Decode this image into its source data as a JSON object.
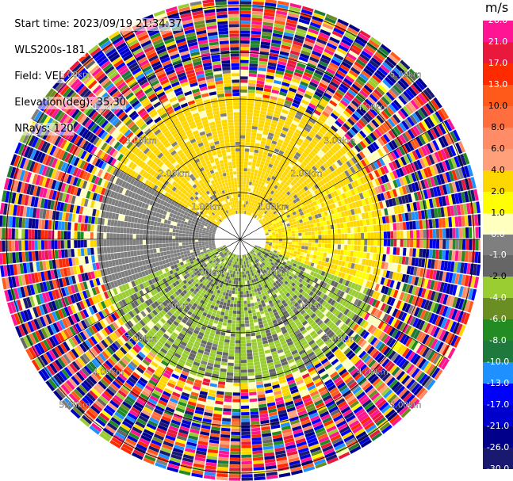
{
  "header": {
    "start_time": "Start time: 2023/09/19 21:34:37",
    "instrument": "WLS200s-181",
    "field": "Field: VEL",
    "elevation": "Elevation(deg): 35.30",
    "nrays": "NRays: 120"
  },
  "colorbar": {
    "unit": "m/s",
    "levels": [
      "26.0",
      "21.0",
      "17.0",
      "13.0",
      "10.0",
      "8.0",
      "6.0",
      "4.0",
      "2.0",
      "1.0",
      "0.0",
      "-1.0",
      "-2.0",
      "-4.0",
      "-6.0",
      "-8.0",
      "-10.0",
      "-13.0",
      "-17.0",
      "-21.0",
      "-26.0",
      "-30.0"
    ],
    "colors": [
      "#ff1493",
      "#e8193c",
      "#ff2a00",
      "#ff5a1a",
      "#ff6e3c",
      "#ff8c66",
      "#ffa07a",
      "#ffd700",
      "#ffff00",
      "#ffffbf",
      "#7f7f7f",
      "#666666",
      "#9acd32",
      "#6b8e23",
      "#228b22",
      "#1e7a3c",
      "#1e90ff",
      "#0000ff",
      "#0000cd",
      "#00008b",
      "#191970"
    ]
  },
  "chart_data": {
    "type": "heatmap",
    "subtype": "polar-ppi",
    "field": "VEL",
    "unit": "m/s",
    "nrays": 120,
    "elevation_deg": 35.3,
    "range_ring_labels": [
      "1.00km",
      "2.00km",
      "3.00km",
      "4.00km",
      "5.00km"
    ],
    "range_rings_km": [
      1,
      2,
      3,
      4,
      5
    ],
    "regions": [
      {
        "azimuth_deg": [
          300,
          60
        ],
        "range_km": [
          0.5,
          3.0
        ],
        "velocity_ms": [
          2.0,
          4.0
        ]
      },
      {
        "azimuth_deg": [
          60,
          110
        ],
        "range_km": [
          0.5,
          3.0
        ],
        "velocity_ms": [
          1.0,
          4.0
        ]
      },
      {
        "azimuth_deg": [
          110,
          250
        ],
        "range_km": [
          0.3,
          3.0
        ],
        "velocity_ms": [
          -4.0,
          -1.0
        ]
      },
      {
        "azimuth_deg": [
          250,
          300
        ],
        "range_km": [
          0.5,
          3.0
        ],
        "velocity_ms": [
          -1.0,
          0.0
        ]
      },
      {
        "azimuth_deg": [
          0,
          360
        ],
        "range_km": [
          3.0,
          5.2
        ],
        "velocity_ms": [
          -30.0,
          26.0
        ],
        "note": "noise"
      }
    ]
  }
}
